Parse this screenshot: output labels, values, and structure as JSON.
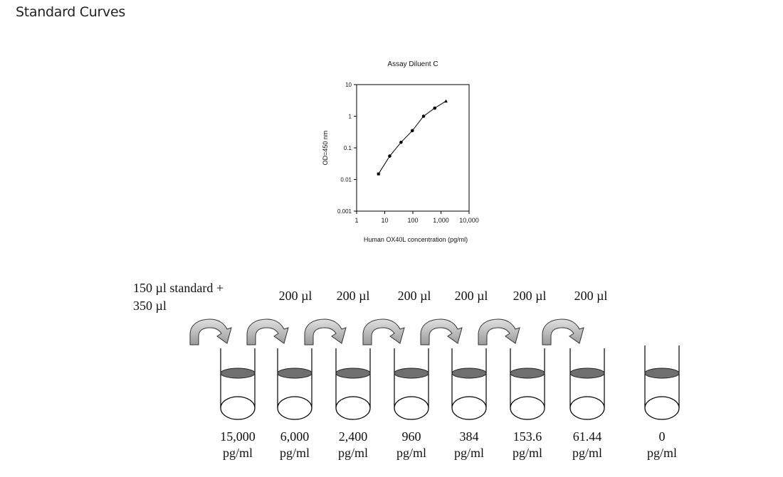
{
  "page": {
    "title": "Standard Curves"
  },
  "chart_data": {
    "type": "line",
    "title": "Assay Diluent C",
    "xlabel": "Human OX40L concentration (pg/ml)",
    "ylabel": "OD=450 nm",
    "x_scale": "log",
    "y_scale": "log",
    "xlim": [
      1,
      10000
    ],
    "ylim": [
      0.001,
      10
    ],
    "x_ticks": [
      {
        "value": 1,
        "label": "1"
      },
      {
        "value": 10,
        "label": "10"
      },
      {
        "value": 100,
        "label": "100"
      },
      {
        "value": 1000,
        "label": "1,000"
      },
      {
        "value": 10000,
        "label": "10,000"
      }
    ],
    "y_ticks": [
      {
        "value": 0.001,
        "label": "0.001"
      },
      {
        "value": 0.01,
        "label": "0.01"
      },
      {
        "value": 0.1,
        "label": "0.1"
      },
      {
        "value": 1,
        "label": "1"
      },
      {
        "value": 10,
        "label": "10"
      }
    ],
    "grid": false,
    "series": [
      {
        "x": [
          6,
          15,
          38,
          96,
          240,
          600,
          1500
        ],
        "y": [
          0.015,
          0.055,
          0.15,
          0.35,
          1.0,
          1.8,
          3.0
        ]
      }
    ]
  },
  "dilution": {
    "first_label_line1": "150 µl standard +",
    "first_label_line2": "350 µl",
    "transfer_labels": [
      "200 µl",
      "200 µl",
      "200 µl",
      "200 µl",
      "200 µl",
      "200 µl"
    ],
    "tubes": [
      {
        "value": "15,000",
        "unit": "pg/ml"
      },
      {
        "value": "6,000",
        "unit": "pg/ml"
      },
      {
        "value": "2,400",
        "unit": "pg/ml"
      },
      {
        "value": "960",
        "unit": "pg/ml"
      },
      {
        "value": "384",
        "unit": "pg/ml"
      },
      {
        "value": "153.6",
        "unit": "pg/ml"
      },
      {
        "value": "61.44",
        "unit": "pg/ml"
      },
      {
        "value": "0",
        "unit": "pg/ml"
      }
    ]
  }
}
